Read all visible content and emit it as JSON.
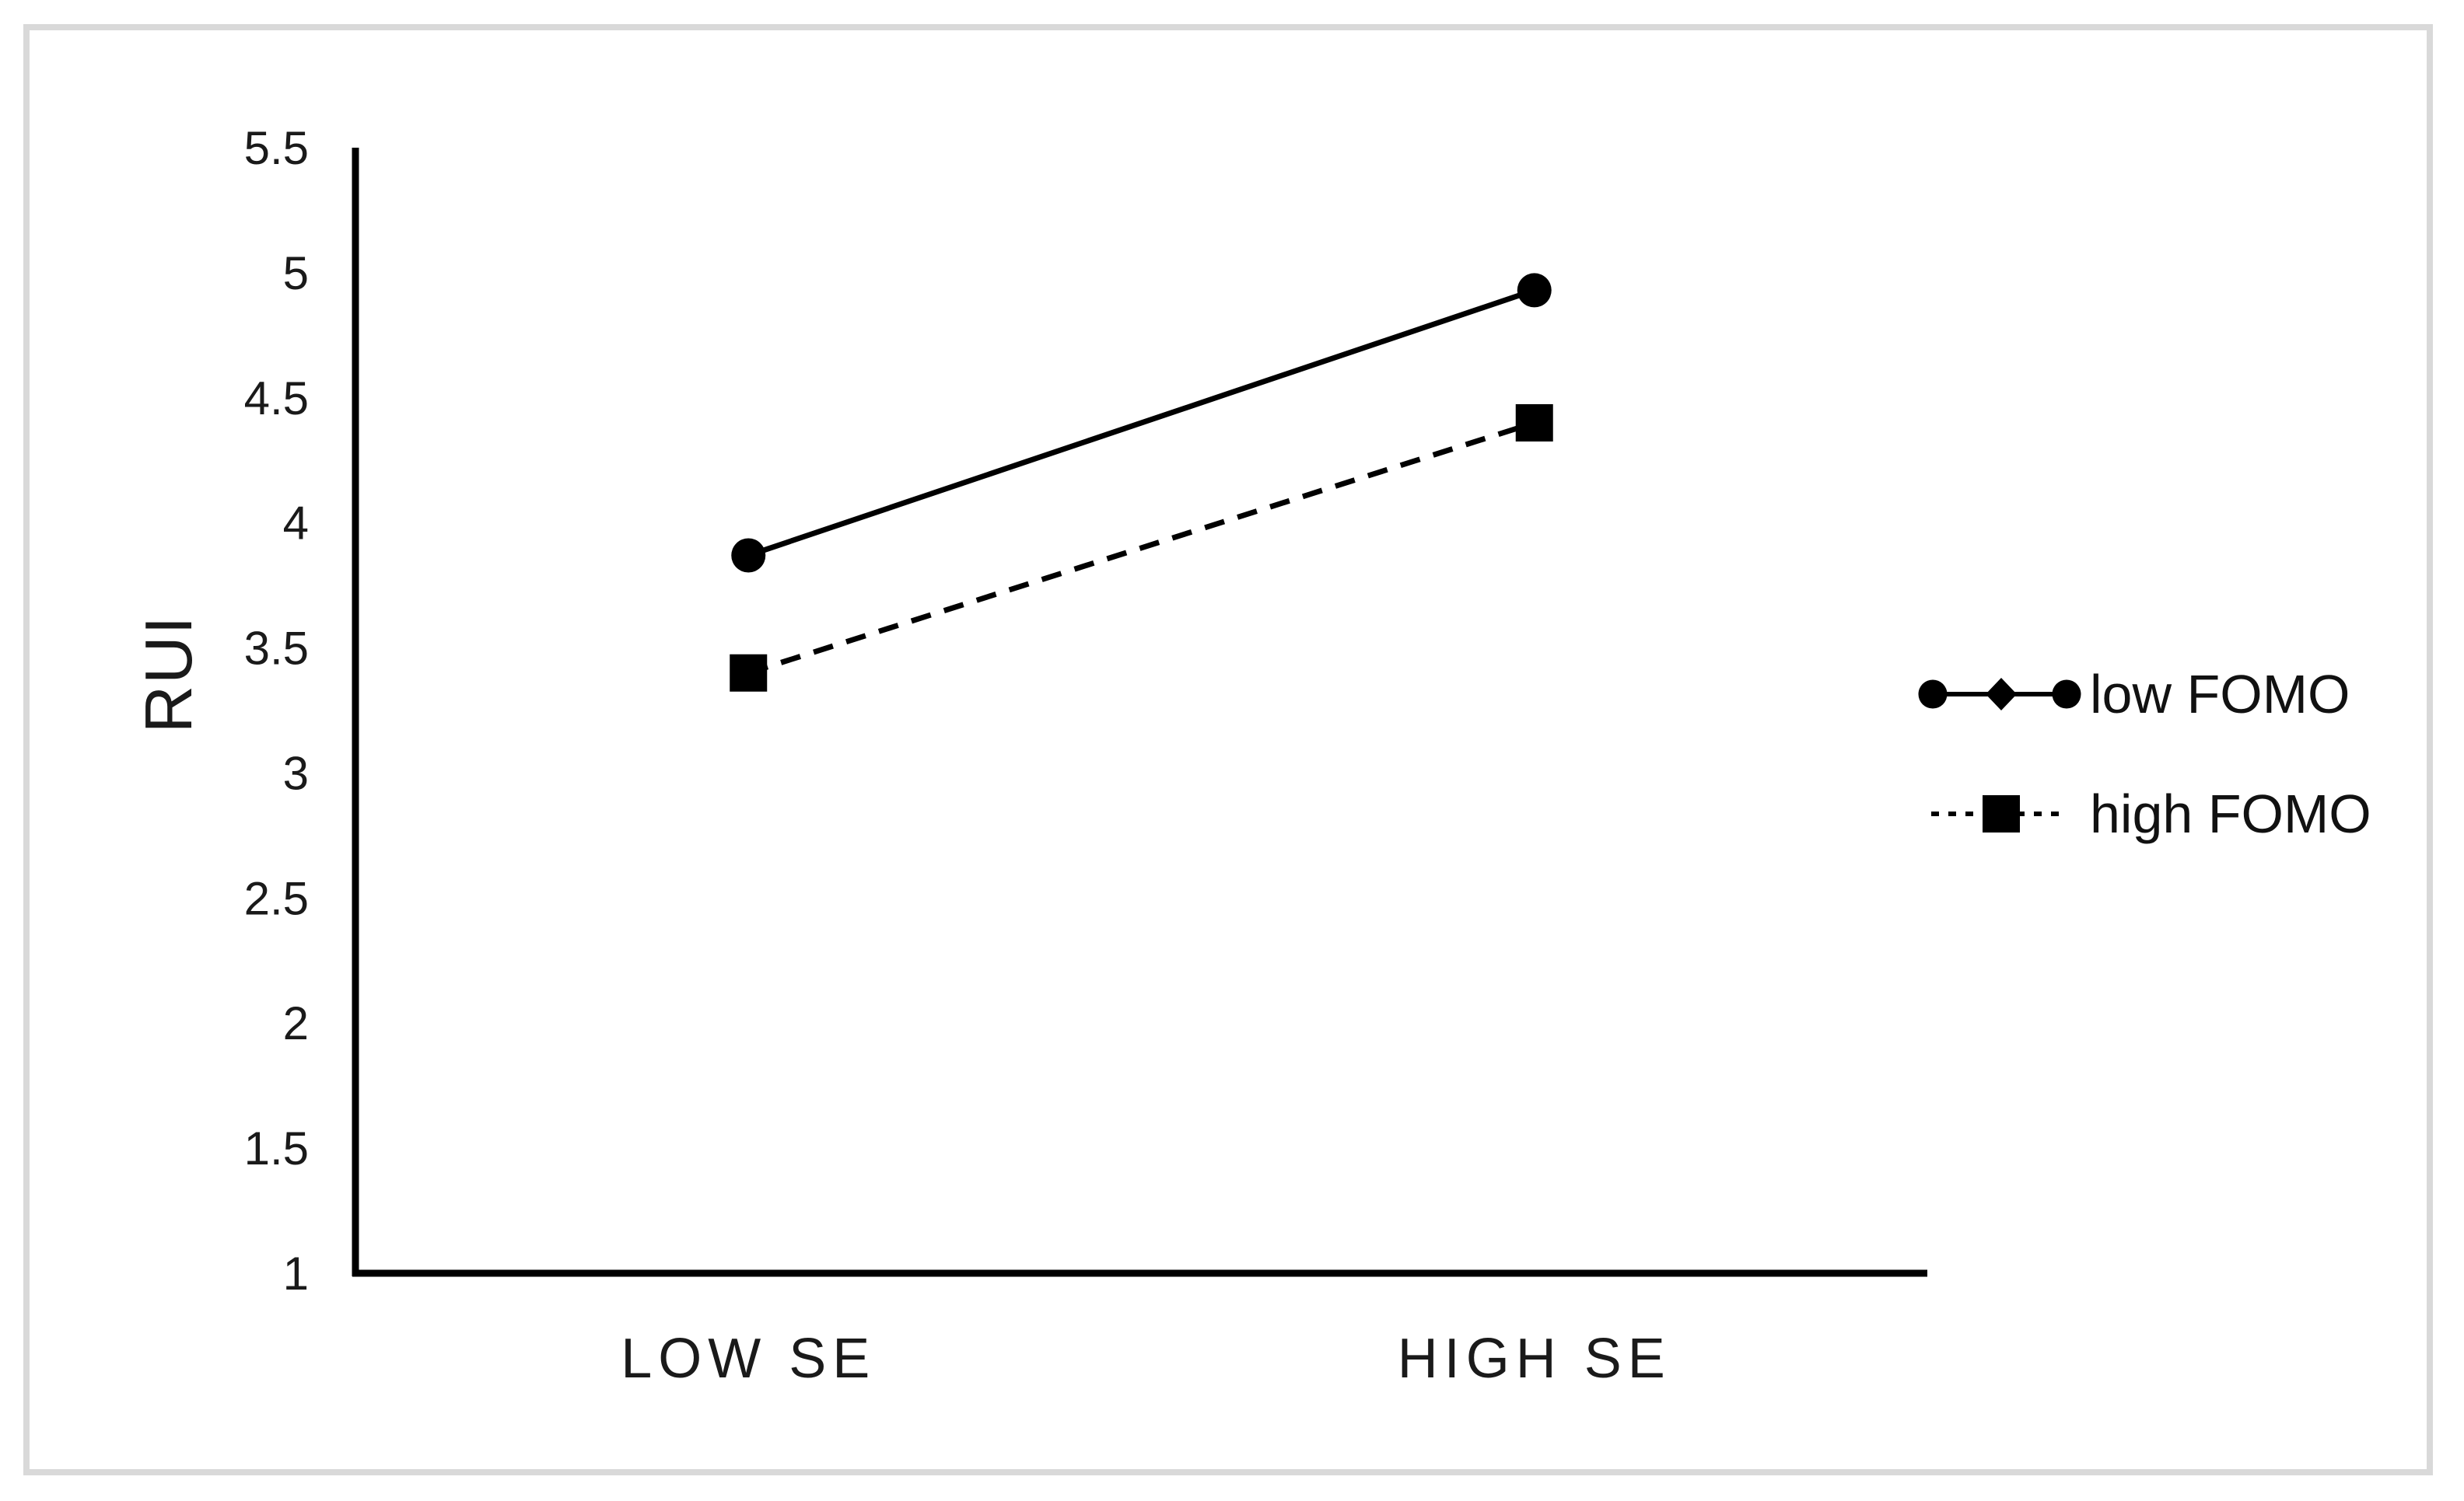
{
  "figure": {
    "background_color": "#ffffff",
    "border_color": "#d9d9d9",
    "text_color": "#1a1a1a",
    "series_color": "#000000"
  },
  "chart_data": {
    "type": "line",
    "title": "",
    "xlabel": "",
    "ylabel": "RUI",
    "categories": [
      "LOW SE",
      "HIGH SE"
    ],
    "series": [
      {
        "name": "low FOMO",
        "values": [
          3.87,
          4.93
        ],
        "line_style": "solid",
        "marker": "circle"
      },
      {
        "name": "high FOMO",
        "values": [
          3.4,
          4.4
        ],
        "line_style": "dashed",
        "marker": "square"
      }
    ],
    "y_axis": {
      "min": 1,
      "max": 5.5,
      "step": 0.5,
      "tick_labels": [
        "5.5",
        "5",
        "4.5",
        "4",
        "3.5",
        "3",
        "2.5",
        "2",
        "1.5",
        "1"
      ]
    },
    "x_axis": {
      "tick_labels": [
        "LOW SE",
        "HIGH SE"
      ]
    },
    "legend_position": "right",
    "grid": false
  }
}
